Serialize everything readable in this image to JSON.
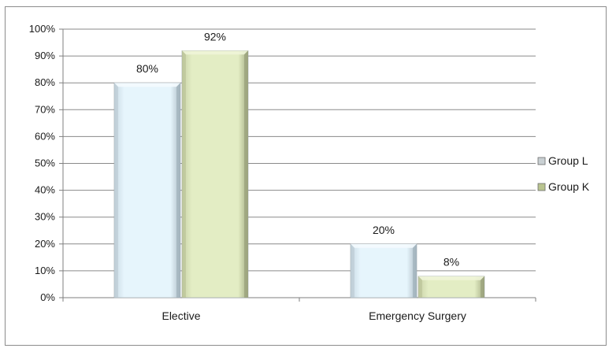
{
  "chart_data": {
    "type": "bar",
    "categories": [
      "Elective",
      "Emergency Surgery"
    ],
    "series": [
      {
        "name": "Group L",
        "values": [
          80,
          20
        ],
        "labels": [
          "80%",
          "20%"
        ],
        "color": "#e3f3fb"
      },
      {
        "name": "Group K",
        "values": [
          92,
          8
        ],
        "labels": [
          "92%",
          "8%"
        ],
        "color": "#e1ebc2"
      }
    ],
    "yticks": [
      "0%",
      "10%",
      "20%",
      "30%",
      "40%",
      "50%",
      "60%",
      "70%",
      "80%",
      "90%",
      "100%"
    ],
    "ylim": [
      0,
      100
    ],
    "grid": true,
    "legend": "right"
  }
}
